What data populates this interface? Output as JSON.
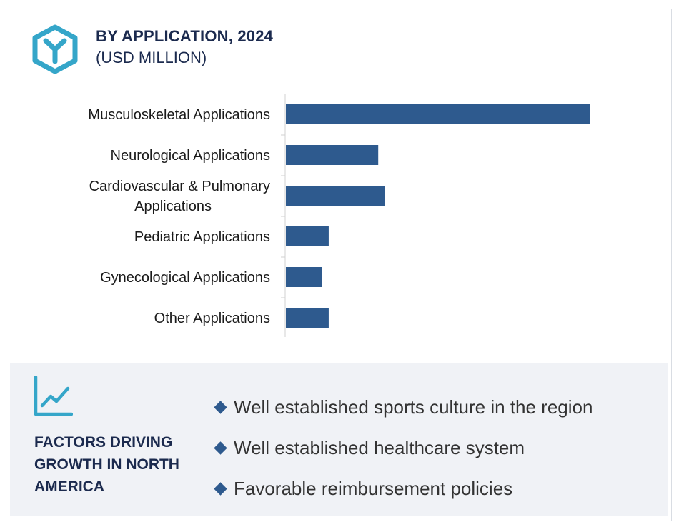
{
  "header": {
    "title": "BY APPLICATION, 2024",
    "subtitle": "(USD MILLION)",
    "logo_icon": "hexagon-y-logo-icon",
    "accent_color": "#35a6c9"
  },
  "chart_data": {
    "type": "bar",
    "orientation": "horizontal",
    "title": "BY APPLICATION, 2024",
    "subtitle": "(USD MILLION)",
    "categories": [
      "Musculoskeletal Applications",
      "Neurological Applications",
      "Cardiovascular & Pulmonary Applications",
      "Pediatric Applications",
      "Gynecological Applications",
      "Other Applications"
    ],
    "values": [
      100,
      30.4,
      32.5,
      14.1,
      11.8,
      14.1
    ],
    "xlim": [
      0,
      100
    ],
    "bar_color": "#2e5a8e",
    "grid": false,
    "legend": "none",
    "value_labels": false
  },
  "factors": {
    "icon": "line-chart-growth-icon",
    "title": "FACTORS DRIVING GROWTH IN NORTH AMERICA",
    "items": [
      "Well established sports culture in the region",
      "Well established healthcare system",
      "Favorable reimbursement policies"
    ],
    "bullet_color": "#2e5a8e",
    "panel_color": "#f0f2f6"
  }
}
